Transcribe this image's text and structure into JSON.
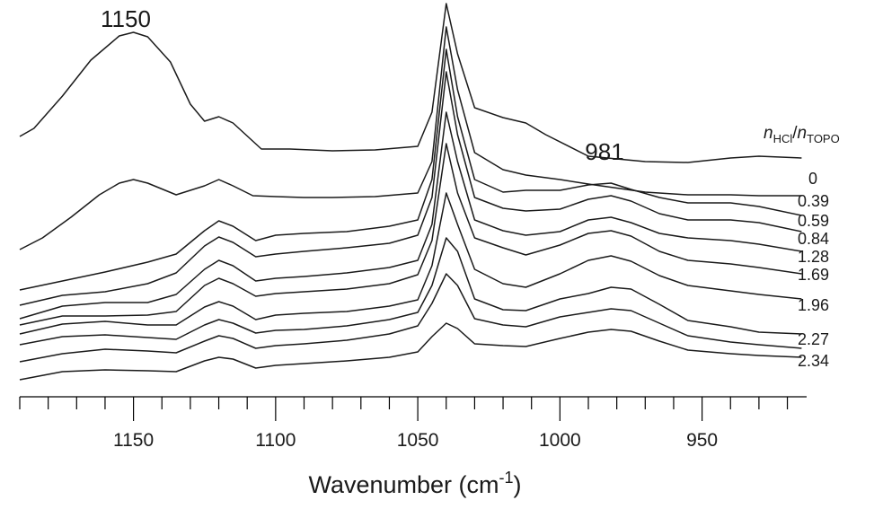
{
  "chart_data": {
    "type": "line",
    "xlabel_base": "Wavenumber (cm",
    "xlabel_sup": "-1",
    "xlabel_tail": ")",
    "xlim": [
      1190,
      915
    ],
    "x_reversed": true,
    "major_ticks": [
      1150,
      1100,
      1050,
      1000,
      950
    ],
    "minor_tick_step": 10,
    "grid": false,
    "legend_title": {
      "n1": "n",
      "sub1": "HCl",
      "slash": "/",
      "n2": "n",
      "sub2": "TOPO"
    },
    "annotations": [
      {
        "text": "1150",
        "x": 1150
      },
      {
        "text": "981",
        "x": 981
      }
    ],
    "series": [
      {
        "name": "0",
        "points": [
          [
            1190,
            152
          ],
          [
            1185,
            143
          ],
          [
            1175,
            107
          ],
          [
            1165,
            67
          ],
          [
            1155,
            40
          ],
          [
            1150,
            36
          ],
          [
            1145,
            41
          ],
          [
            1137,
            69
          ],
          [
            1130,
            116
          ],
          [
            1125,
            135
          ],
          [
            1120,
            130
          ],
          [
            1115,
            137
          ],
          [
            1105,
            166
          ],
          [
            1095,
            166
          ],
          [
            1080,
            168
          ],
          [
            1065,
            167
          ],
          [
            1050,
            163
          ],
          [
            1045,
            125
          ],
          [
            1040,
            4
          ],
          [
            1036,
            60
          ],
          [
            1030,
            120
          ],
          [
            1020,
            131
          ],
          [
            1012,
            137
          ],
          [
            1005,
            150
          ],
          [
            990,
            174
          ],
          [
            970,
            180
          ],
          [
            955,
            181
          ],
          [
            940,
            176
          ],
          [
            930,
            174
          ],
          [
            915,
            176
          ]
        ]
      },
      {
        "name": "0.39",
        "points": [
          [
            1190,
            278
          ],
          [
            1182,
            265
          ],
          [
            1172,
            242
          ],
          [
            1162,
            217
          ],
          [
            1155,
            204
          ],
          [
            1150,
            200
          ],
          [
            1145,
            204
          ],
          [
            1135,
            217
          ],
          [
            1125,
            207
          ],
          [
            1120,
            200
          ],
          [
            1115,
            207
          ],
          [
            1108,
            218
          ],
          [
            1100,
            219
          ],
          [
            1090,
            220
          ],
          [
            1080,
            220
          ],
          [
            1065,
            219
          ],
          [
            1050,
            215
          ],
          [
            1045,
            180
          ],
          [
            1040,
            30
          ],
          [
            1036,
            100
          ],
          [
            1030,
            170
          ],
          [
            1020,
            189
          ],
          [
            1012,
            195
          ],
          [
            1000,
            200
          ],
          [
            990,
            205
          ],
          [
            970,
            214
          ],
          [
            955,
            217
          ],
          [
            940,
            217
          ],
          [
            930,
            218
          ],
          [
            915,
            218
          ]
        ]
      },
      {
        "name": "0.59",
        "points": [
          [
            1190,
            323
          ],
          [
            1175,
            313
          ],
          [
            1160,
            303
          ],
          [
            1145,
            292
          ],
          [
            1135,
            283
          ],
          [
            1125,
            257
          ],
          [
            1120,
            246
          ],
          [
            1115,
            252
          ],
          [
            1107,
            268
          ],
          [
            1100,
            262
          ],
          [
            1090,
            260
          ],
          [
            1075,
            258
          ],
          [
            1060,
            252
          ],
          [
            1050,
            245
          ],
          [
            1045,
            200
          ],
          [
            1040,
            55
          ],
          [
            1036,
            130
          ],
          [
            1030,
            200
          ],
          [
            1020,
            214
          ],
          [
            1012,
            212
          ],
          [
            1000,
            212
          ],
          [
            990,
            206
          ],
          [
            982,
            204
          ],
          [
            975,
            211
          ],
          [
            965,
            220
          ],
          [
            955,
            226
          ],
          [
            940,
            226
          ],
          [
            930,
            230
          ],
          [
            915,
            240
          ]
        ]
      },
      {
        "name": "0.84",
        "points": [
          [
            1190,
            340
          ],
          [
            1175,
            329
          ],
          [
            1160,
            325
          ],
          [
            1145,
            316
          ],
          [
            1135,
            304
          ],
          [
            1125,
            274
          ],
          [
            1120,
            264
          ],
          [
            1115,
            270
          ],
          [
            1107,
            286
          ],
          [
            1100,
            283
          ],
          [
            1090,
            280
          ],
          [
            1075,
            276
          ],
          [
            1060,
            271
          ],
          [
            1050,
            262
          ],
          [
            1045,
            220
          ],
          [
            1040,
            80
          ],
          [
            1036,
            150
          ],
          [
            1030,
            220
          ],
          [
            1020,
            232
          ],
          [
            1012,
            235
          ],
          [
            1000,
            233
          ],
          [
            990,
            222
          ],
          [
            982,
            218
          ],
          [
            975,
            224
          ],
          [
            965,
            238
          ],
          [
            955,
            245
          ],
          [
            940,
            245
          ],
          [
            930,
            248
          ],
          [
            915,
            258
          ]
        ]
      },
      {
        "name": "1.28",
        "points": [
          [
            1190,
            355
          ],
          [
            1175,
            341
          ],
          [
            1160,
            337
          ],
          [
            1145,
            337
          ],
          [
            1135,
            328
          ],
          [
            1125,
            300
          ],
          [
            1120,
            290
          ],
          [
            1115,
            296
          ],
          [
            1107,
            313
          ],
          [
            1100,
            310
          ],
          [
            1090,
            308
          ],
          [
            1075,
            304
          ],
          [
            1060,
            298
          ],
          [
            1050,
            290
          ],
          [
            1045,
            250
          ],
          [
            1040,
            125
          ],
          [
            1036,
            180
          ],
          [
            1030,
            245
          ],
          [
            1020,
            257
          ],
          [
            1012,
            262
          ],
          [
            1000,
            258
          ],
          [
            990,
            245
          ],
          [
            982,
            242
          ],
          [
            975,
            248
          ],
          [
            965,
            260
          ],
          [
            955,
            265
          ],
          [
            940,
            268
          ],
          [
            930,
            272
          ],
          [
            915,
            280
          ]
        ]
      },
      {
        "name": "1.69",
        "points": [
          [
            1190,
            362
          ],
          [
            1175,
            352
          ],
          [
            1160,
            352
          ],
          [
            1145,
            351
          ],
          [
            1135,
            347
          ],
          [
            1125,
            318
          ],
          [
            1120,
            310
          ],
          [
            1115,
            316
          ],
          [
            1107,
            330
          ],
          [
            1100,
            327
          ],
          [
            1090,
            325
          ],
          [
            1075,
            322
          ],
          [
            1060,
            316
          ],
          [
            1050,
            306
          ],
          [
            1045,
            268
          ],
          [
            1040,
            160
          ],
          [
            1036,
            215
          ],
          [
            1030,
            265
          ],
          [
            1020,
            276
          ],
          [
            1012,
            284
          ],
          [
            1000,
            273
          ],
          [
            990,
            260
          ],
          [
            982,
            257
          ],
          [
            975,
            263
          ],
          [
            965,
            280
          ],
          [
            955,
            290
          ],
          [
            940,
            294
          ],
          [
            930,
            298
          ],
          [
            915,
            305
          ]
        ]
      },
      {
        "name": "1.96",
        "points": [
          [
            1190,
            372
          ],
          [
            1175,
            361
          ],
          [
            1160,
            358
          ],
          [
            1145,
            362
          ],
          [
            1135,
            362
          ],
          [
            1125,
            342
          ],
          [
            1120,
            336
          ],
          [
            1115,
            341
          ],
          [
            1107,
            356
          ],
          [
            1100,
            351
          ],
          [
            1090,
            349
          ],
          [
            1075,
            347
          ],
          [
            1060,
            341
          ],
          [
            1050,
            334
          ],
          [
            1045,
            296
          ],
          [
            1040,
            215
          ],
          [
            1036,
            250
          ],
          [
            1030,
            300
          ],
          [
            1020,
            316
          ],
          [
            1012,
            320
          ],
          [
            1000,
            305
          ],
          [
            990,
            290
          ],
          [
            982,
            285
          ],
          [
            975,
            291
          ],
          [
            965,
            307
          ],
          [
            955,
            318
          ],
          [
            940,
            324
          ],
          [
            930,
            328
          ],
          [
            915,
            333
          ]
        ]
      },
      {
        "name": "2.27",
        "points": [
          [
            1190,
            384
          ],
          [
            1175,
            375
          ],
          [
            1160,
            373
          ],
          [
            1145,
            376
          ],
          [
            1135,
            378
          ],
          [
            1125,
            362
          ],
          [
            1120,
            356
          ],
          [
            1115,
            360
          ],
          [
            1107,
            371
          ],
          [
            1100,
            368
          ],
          [
            1090,
            367
          ],
          [
            1075,
            363
          ],
          [
            1060,
            356
          ],
          [
            1050,
            348
          ],
          [
            1045,
            318
          ],
          [
            1040,
            265
          ],
          [
            1036,
            280
          ],
          [
            1030,
            333
          ],
          [
            1020,
            345
          ],
          [
            1012,
            346
          ],
          [
            1000,
            333
          ],
          [
            990,
            327
          ],
          [
            982,
            320
          ],
          [
            975,
            322
          ],
          [
            965,
            339
          ],
          [
            955,
            357
          ],
          [
            940,
            364
          ],
          [
            930,
            370
          ],
          [
            915,
            372
          ]
        ]
      },
      {
        "name": "2.34",
        "points": [
          [
            1190,
            403
          ],
          [
            1175,
            394
          ],
          [
            1160,
            389
          ],
          [
            1145,
            391
          ],
          [
            1135,
            393
          ],
          [
            1125,
            380
          ],
          [
            1120,
            374
          ],
          [
            1115,
            377
          ],
          [
            1107,
            388
          ],
          [
            1100,
            385
          ],
          [
            1090,
            383
          ],
          [
            1075,
            379
          ],
          [
            1060,
            372
          ],
          [
            1050,
            363
          ],
          [
            1045,
            338
          ],
          [
            1040,
            305
          ],
          [
            1036,
            318
          ],
          [
            1030,
            355
          ],
          [
            1020,
            362
          ],
          [
            1012,
            364
          ],
          [
            1000,
            353
          ],
          [
            990,
            348
          ],
          [
            982,
            344
          ],
          [
            975,
            346
          ],
          [
            965,
            360
          ],
          [
            955,
            374
          ],
          [
            940,
            381
          ],
          [
            930,
            384
          ],
          [
            915,
            388
          ]
        ]
      }
    ]
  },
  "extra_trace_points": [
    [
      1190,
      423
    ],
    [
      1175,
      414
    ],
    [
      1160,
      412
    ],
    [
      1145,
      413
    ],
    [
      1135,
      414
    ],
    [
      1125,
      402
    ],
    [
      1120,
      398
    ],
    [
      1115,
      400
    ],
    [
      1107,
      410
    ],
    [
      1100,
      407
    ],
    [
      1090,
      405
    ],
    [
      1075,
      402
    ],
    [
      1060,
      398
    ],
    [
      1050,
      392
    ],
    [
      1045,
      375
    ],
    [
      1040,
      360
    ],
    [
      1036,
      366
    ],
    [
      1030,
      383
    ],
    [
      1020,
      385
    ],
    [
      1012,
      386
    ],
    [
      1000,
      377
    ],
    [
      990,
      370
    ],
    [
      982,
      367
    ],
    [
      975,
      369
    ],
    [
      965,
      380
    ],
    [
      955,
      390
    ],
    [
      940,
      394
    ],
    [
      930,
      396
    ],
    [
      915,
      398
    ]
  ]
}
